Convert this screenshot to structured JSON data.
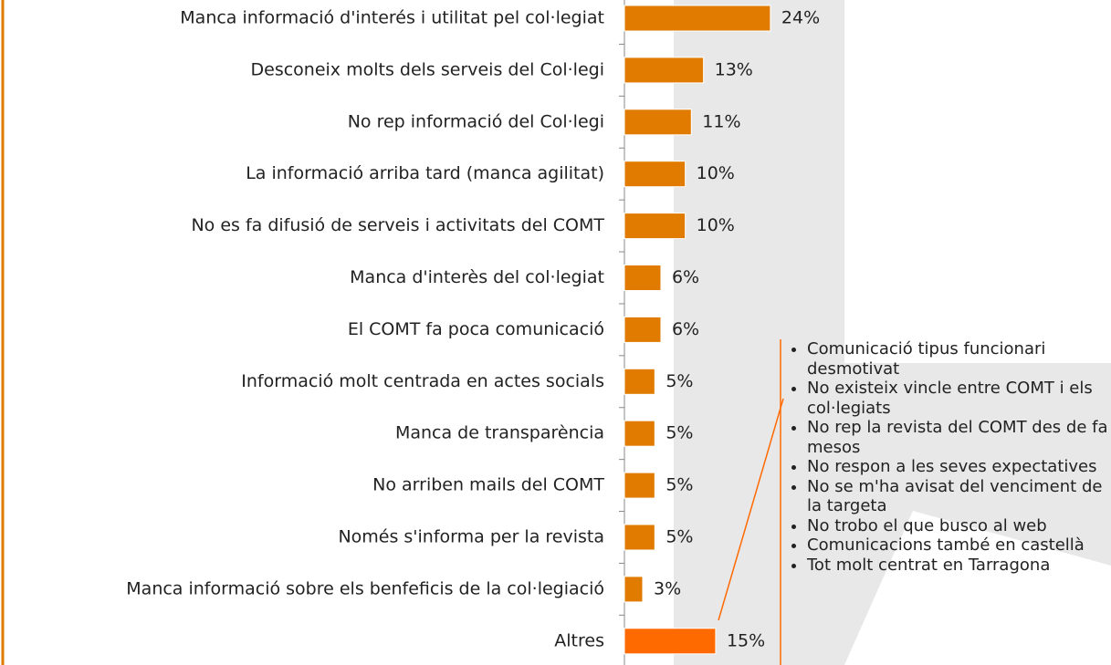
{
  "chart_data": {
    "type": "bar",
    "orientation": "horizontal",
    "categories": [
      "Manca informació d'interés i utilitat pel col·legiat",
      "Desconeix molts dels serveis del Col·legi",
      "No rep informació del Col·legi",
      "La informació arriba tard (manca agilitat)",
      "No es fa difusió de serveis i activitats del COMT",
      "Manca d'interès del col·legiat",
      "El COMT fa poca comunicació",
      "Informació molt centrada en actes socials",
      "Manca de transparència",
      "No arriben mails del COMT",
      "Només s'informa per la revista",
      "Manca informació sobre els benfeficis de la col·legiació",
      "Altres"
    ],
    "values": [
      24,
      13,
      11,
      10,
      10,
      6,
      6,
      5,
      5,
      5,
      5,
      3,
      15
    ],
    "value_labels": [
      "24%",
      "13%",
      "11%",
      "10%",
      "10%",
      "6%",
      "6%",
      "5%",
      "5%",
      "5%",
      "5%",
      "3%",
      "15%"
    ],
    "colors": [
      "#e07b00",
      "#e07b00",
      "#e07b00",
      "#e07b00",
      "#e07b00",
      "#e07b00",
      "#e07b00",
      "#e07b00",
      "#e07b00",
      "#e07b00",
      "#e07b00",
      "#e07b00",
      "#ff6a00"
    ],
    "xlim": [
      0,
      80
    ],
    "annotation": {
      "items": [
        "Comunicació tipus funcionari desmotivat",
        "No existeix vincle entre COMT i els col·legiats",
        "No rep la revista del COMT des de fa mesos",
        "No respon a les seves expectatives",
        "No se m'ha avisat del venciment de la targeta",
        "No trobo el que busco al web",
        "Comunicacions també en castellà",
        "Tot molt centrat en Tarragona"
      ]
    }
  }
}
